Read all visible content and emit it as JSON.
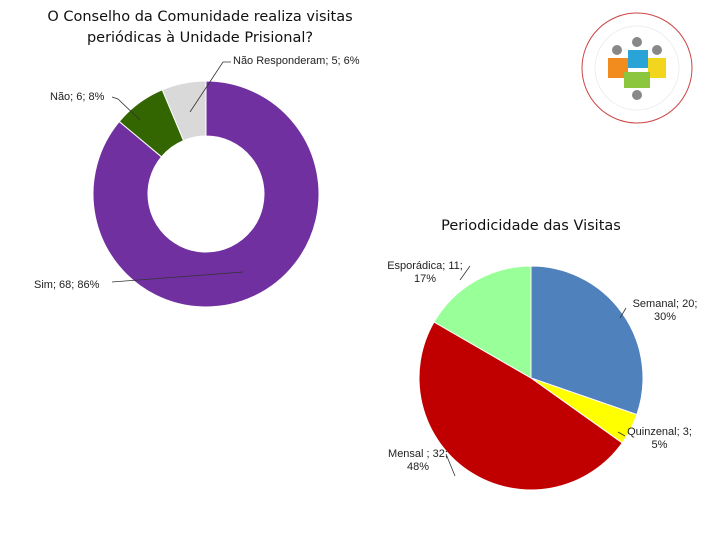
{
  "chart_data": [
    {
      "type": "donut",
      "title": "O Conselho da Comunidade realiza visitas periódicas à Unidade Prisional?",
      "categories": [
        "Sim",
        "Não",
        "Não Responderam"
      ],
      "values": [
        68,
        6,
        5
      ],
      "value_labels": [
        "Sim; 68; 86%",
        "Não; 6; 8%",
        "Não Responderam; 5; 6%"
      ],
      "colors": [
        "#7030a0",
        "#336600",
        "#d9d9d9"
      ]
    },
    {
      "type": "pie",
      "title": "Periodicidade das Visitas",
      "categories": [
        "Semanal",
        "Quinzenal",
        "Mensal",
        "Esporádica"
      ],
      "values": [
        20,
        3,
        32,
        11
      ],
      "value_labels": [
        "Semanal; 20; 30%",
        "Quinzenal; 3; 5%",
        "Mensal ; 32; 48%",
        "Esporádica; 11; 17%"
      ],
      "colors": [
        "#4f81bd",
        "#ffff00",
        "#c00000",
        "#99ff99"
      ]
    }
  ]
}
